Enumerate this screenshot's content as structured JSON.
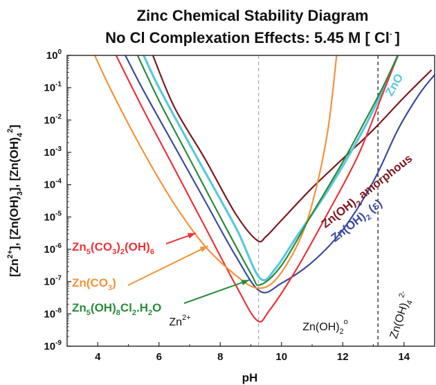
{
  "chart_data": {
    "type": "line",
    "title": "Zinc Chemical Stability Diagram",
    "subtitle": "No Cl Complexation Effects: 5.45 M [ Cl",
    "subtitle_sup": "-",
    "subtitle_end": "]",
    "xlabel": "pH",
    "ylabel": "[Zn2+], [Zn(OH)3-], [Zn(OH)4 2-]",
    "xlim": [
      3,
      15
    ],
    "ylim_log10": [
      -9,
      0
    ],
    "y_scale": "log",
    "x_ticks": [
      4,
      6,
      8,
      10,
      12,
      14
    ],
    "y_ticks": [
      {
        "base": "10",
        "exp": "0"
      },
      {
        "base": "10",
        "exp": "-1"
      },
      {
        "base": "10",
        "exp": "-2"
      },
      {
        "base": "10",
        "exp": "-3"
      },
      {
        "base": "10",
        "exp": "-4"
      },
      {
        "base": "10",
        "exp": "-5"
      },
      {
        "base": "10",
        "exp": "-6"
      },
      {
        "base": "10",
        "exp": "-7"
      },
      {
        "base": "10",
        "exp": "-8"
      },
      {
        "base": "10",
        "exp": "-9"
      }
    ],
    "vlines": [
      {
        "x": 9.25,
        "color": "#aaaaaa",
        "style": "dashed"
      },
      {
        "x": 13.15,
        "color": "#222222",
        "style": "dashed"
      }
    ],
    "series": [
      {
        "name": "Zn(OH)2 amorphous",
        "color": "#7a1a1f",
        "points": [
          [
            5.8,
            0
          ],
          [
            6.5,
            -1.6
          ],
          [
            7.5,
            -3.2
          ],
          [
            8.5,
            -4.9
          ],
          [
            9.2,
            -5.72
          ],
          [
            9.5,
            -5.6
          ],
          [
            10,
            -5.1
          ],
          [
            11,
            -4.1
          ],
          [
            12,
            -3.2
          ],
          [
            13,
            -2.3
          ],
          [
            14,
            -1.3
          ],
          [
            14.9,
            -0.45
          ]
        ]
      },
      {
        "name": "Zn(OH)2 (ε)",
        "color": "#3b4a9c",
        "points": [
          [
            4.9,
            0
          ],
          [
            5.5,
            -1.1
          ],
          [
            6.5,
            -2.8
          ],
          [
            7.5,
            -4.5
          ],
          [
            8.5,
            -6.2
          ],
          [
            9.3,
            -7.3
          ],
          [
            10,
            -7.05
          ],
          [
            11,
            -6.4
          ],
          [
            12,
            -5.4
          ],
          [
            13,
            -3.9
          ],
          [
            13.8,
            -2.3
          ],
          [
            14.5,
            -1.2
          ],
          [
            15,
            -0.6
          ]
        ]
      },
      {
        "name": "ZnO",
        "color": "#5ac8dc",
        "points": [
          [
            5.5,
            0
          ],
          [
            6,
            -1
          ],
          [
            7,
            -2.75
          ],
          [
            8,
            -4.45
          ],
          [
            8.6,
            -5.5
          ],
          [
            9.3,
            -6.9
          ],
          [
            9.8,
            -6.6
          ],
          [
            10.5,
            -5.6
          ],
          [
            11.5,
            -4.2
          ],
          [
            12.5,
            -2.6
          ],
          [
            13.2,
            -1.3
          ],
          [
            13.8,
            0
          ]
        ]
      },
      {
        "name": "Zn5(CO3)2(OH)6",
        "color": "#e8343a",
        "points": [
          [
            4.6,
            0
          ],
          [
            5.5,
            -1.7
          ],
          [
            6.5,
            -3.5
          ],
          [
            7.5,
            -5.3
          ],
          [
            8.5,
            -7.1
          ],
          [
            9.2,
            -8.2
          ],
          [
            9.6,
            -7.9
          ],
          [
            10.5,
            -6.6
          ],
          [
            11.5,
            -4.9
          ],
          [
            12.5,
            -3.1
          ],
          [
            13.3,
            -1.2
          ],
          [
            13.8,
            0
          ]
        ]
      },
      {
        "name": "Zn(CO3)",
        "color": "#f4923a",
        "points": [
          [
            3.9,
            0
          ],
          [
            4.5,
            -1.2
          ],
          [
            5.5,
            -3.0
          ],
          [
            6.5,
            -4.6
          ],
          [
            7.5,
            -5.9
          ],
          [
            8.5,
            -6.8
          ],
          [
            9.2,
            -7.2
          ],
          [
            9.8,
            -6.95
          ],
          [
            10.5,
            -5.9
          ],
          [
            11,
            -4.6
          ],
          [
            11.5,
            -2.4
          ],
          [
            11.8,
            0
          ]
        ]
      },
      {
        "name": "Zn5(OH)8Cl2.H2O",
        "color": "#2a8a3a",
        "points": [
          [
            5.3,
            0
          ],
          [
            6,
            -1.4
          ],
          [
            7,
            -3.2
          ],
          [
            8,
            -5.0
          ],
          [
            9,
            -6.75
          ],
          [
            9.3,
            -7.1
          ],
          [
            10,
            -6.5
          ],
          [
            11,
            -4.9
          ],
          [
            12,
            -3.3
          ],
          [
            12.8,
            -1.9
          ],
          [
            13.3,
            -1.0
          ],
          [
            13.8,
            0
          ]
        ]
      }
    ],
    "region_labels": {
      "zn2": {
        "base": "Zn",
        "sup": "2+"
      },
      "zn_oh2": {
        "base": "Zn(OH)",
        "sub": "2",
        "sup": "o"
      },
      "zn_oh4": {
        "base": "Zn(OH)",
        "sub": "4",
        "sup": "2-"
      }
    },
    "curve_labels": {
      "amorphous": {
        "pre": "Zn(OH)",
        "sub": "2",
        "post": " amorphous"
      },
      "epsilon": {
        "pre": "Zn(OH)",
        "sub": "2",
        "post": " (ε)"
      },
      "zno": {
        "text": "ZnO"
      },
      "zn5co3": {
        "t1": "Zn",
        "s1": "5",
        "t2": "(CO",
        "s2": "3",
        "t3": ")",
        "s3": "2",
        "t4": "(OH)",
        "s4": "6"
      },
      "znco3": {
        "t1": "Zn(CO",
        "s1": "3",
        "t2": ")"
      },
      "zn5cl": {
        "t1": "Zn",
        "s1": "5",
        "t2": "(OH)",
        "s2": "8",
        "t3": "Cl",
        "s3": "2",
        "t4": ".H",
        "s4": "2",
        "t5": "O"
      }
    }
  }
}
